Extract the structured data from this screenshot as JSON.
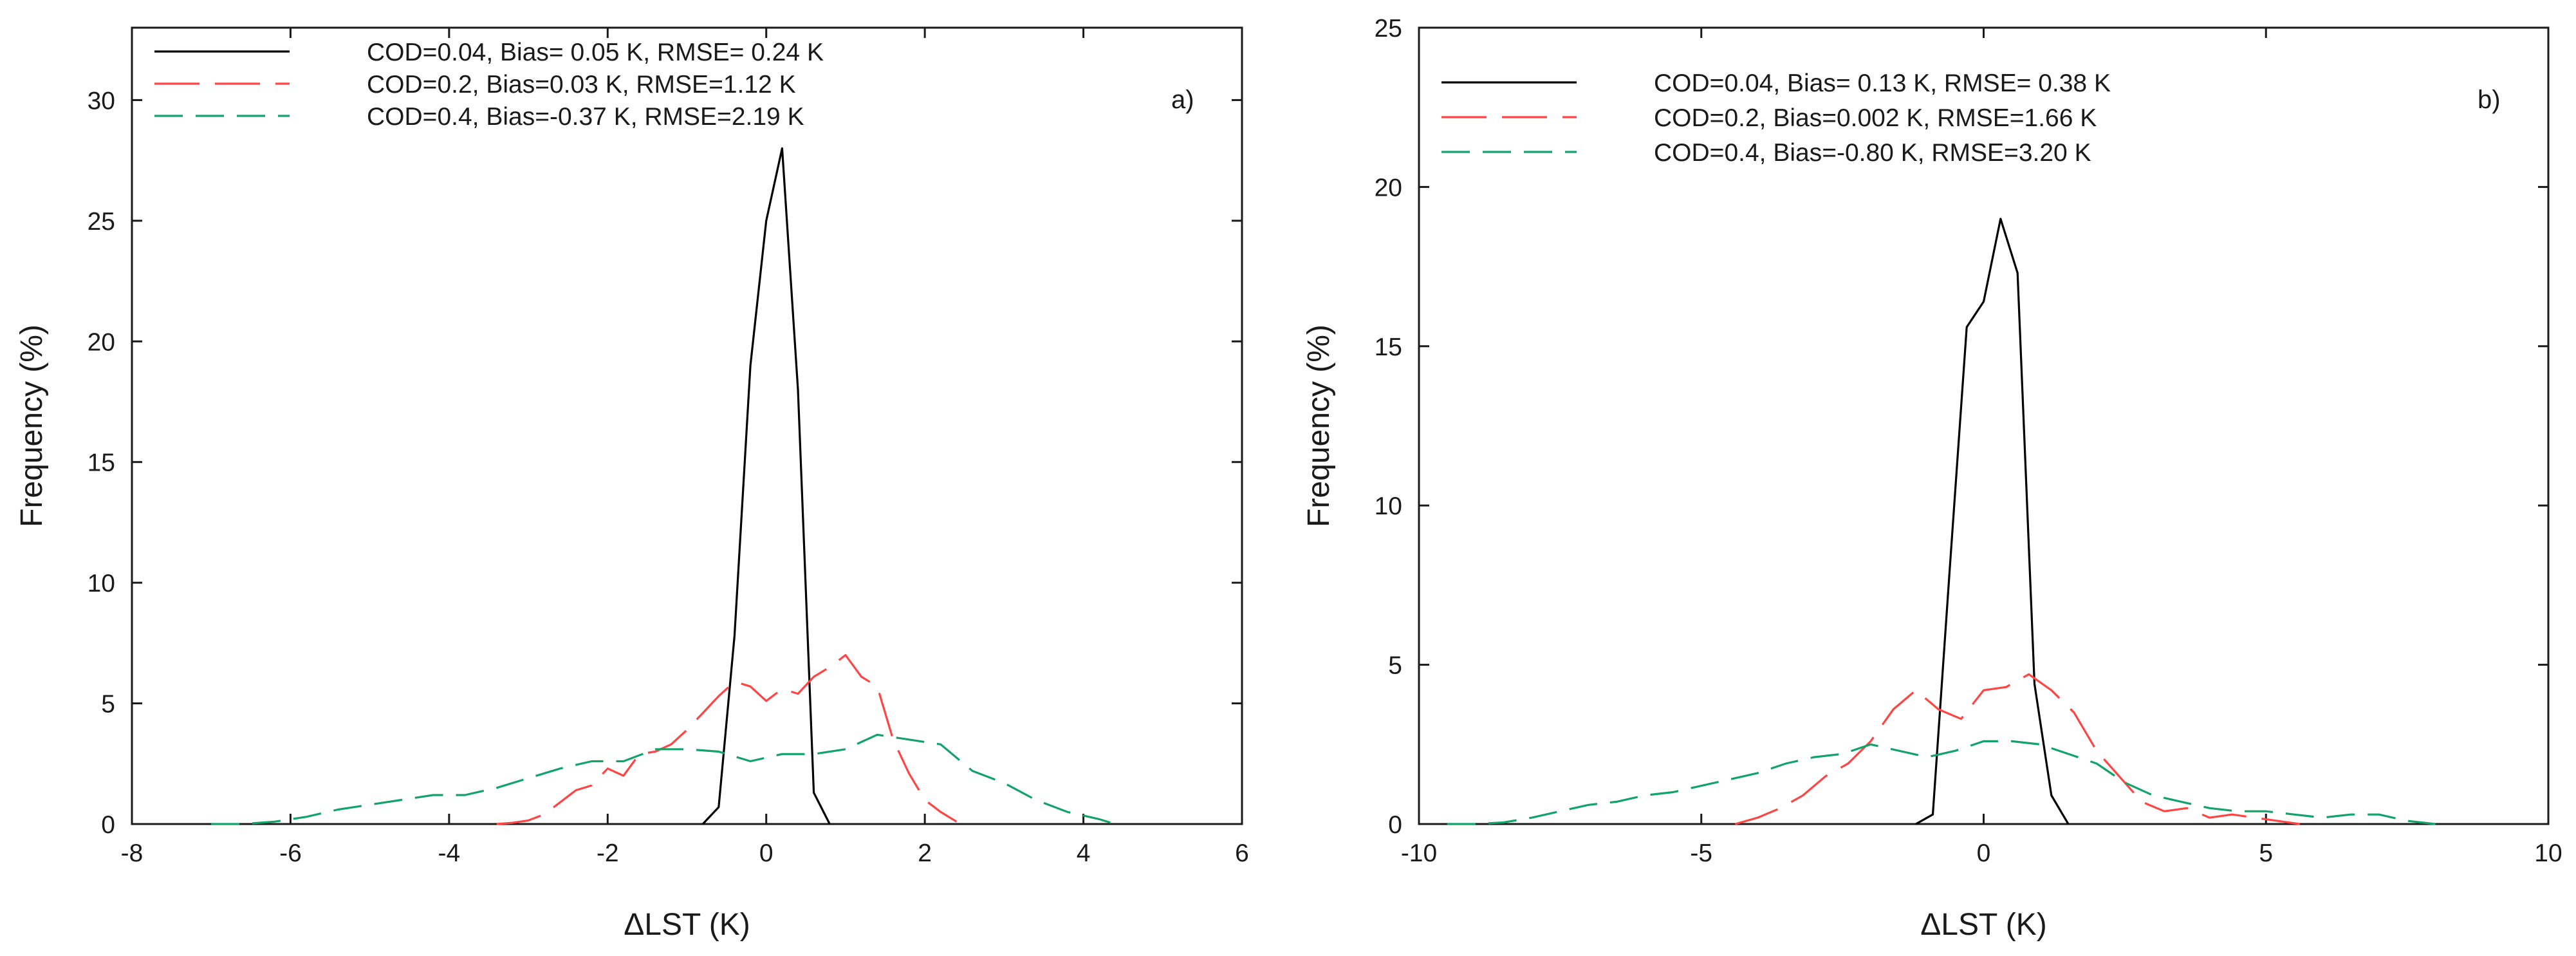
{
  "chart_data": [
    {
      "type": "line",
      "panel_label": "a)",
      "xlabel": "ΔLST (K)",
      "ylabel": "Frequency (%)",
      "xlim": [
        -8,
        6
      ],
      "ylim": [
        0,
        33
      ],
      "xticks": [
        -8,
        -6,
        -4,
        -2,
        0,
        2,
        4,
        6
      ],
      "yticks": [
        0,
        5,
        10,
        15,
        20,
        25,
        30
      ],
      "legend_position": "top-left",
      "series": [
        {
          "name": "COD=0.04, Bias= 0.05 K, RMSE= 0.24 K",
          "color": "#000000",
          "dash": "solid",
          "x": [
            -0.8,
            -0.6,
            -0.4,
            -0.2,
            0.0,
            0.2,
            0.4,
            0.6,
            0.8
          ],
          "y": [
            0,
            0.7,
            7.8,
            19,
            25,
            28,
            18,
            1.3,
            0
          ]
        },
        {
          "name": "COD=0.2, Bias=0.03 K, RMSE=1.12 K",
          "color": "#ff4444",
          "dash": "long",
          "x": [
            -3.4,
            -3.2,
            -3.0,
            -2.8,
            -2.6,
            -2.4,
            -2.2,
            -2.0,
            -1.8,
            -1.6,
            -1.4,
            -1.2,
            -1.0,
            -0.8,
            -0.6,
            -0.4,
            -0.2,
            0.0,
            0.2,
            0.4,
            0.6,
            0.8,
            1.0,
            1.2,
            1.4,
            1.6,
            1.8,
            2.0,
            2.2,
            2.4
          ],
          "y": [
            0,
            0.05,
            0.15,
            0.4,
            0.9,
            1.4,
            1.6,
            2.3,
            2.0,
            2.9,
            3.0,
            3.3,
            3.9,
            4.6,
            5.3,
            5.9,
            5.7,
            5.1,
            5.6,
            5.4,
            6.1,
            6.5,
            7.0,
            6.1,
            5.7,
            3.5,
            2.1,
            1.0,
            0.5,
            0.1
          ]
        },
        {
          "name": "COD=0.4, Bias=-0.37 K, RMSE=2.19 K",
          "color": "#12a36b",
          "dash": "medium",
          "x": [
            -7.0,
            -6.6,
            -6.2,
            -5.8,
            -5.4,
            -5.0,
            -4.6,
            -4.2,
            -3.8,
            -3.4,
            -3.0,
            -2.6,
            -2.2,
            -1.8,
            -1.4,
            -1.0,
            -0.6,
            -0.2,
            0.2,
            0.6,
            1.0,
            1.4,
            1.8,
            2.2,
            2.6,
            3.0,
            3.4,
            3.8,
            4.2,
            4.4
          ],
          "y": [
            0,
            0,
            0.1,
            0.3,
            0.6,
            0.8,
            1.0,
            1.2,
            1.2,
            1.5,
            1.9,
            2.3,
            2.6,
            2.6,
            3.1,
            3.1,
            3.0,
            2.6,
            2.9,
            2.9,
            3.1,
            3.7,
            3.5,
            3.3,
            2.2,
            1.7,
            1.0,
            0.5,
            0.2,
            0
          ]
        }
      ]
    },
    {
      "type": "line",
      "panel_label": "b)",
      "xlabel": "ΔLST (K)",
      "ylabel": "Frequency (%)",
      "xlim": [
        -10,
        10
      ],
      "ylim": [
        0,
        25
      ],
      "xticks": [
        -10,
        -5,
        0,
        5,
        10
      ],
      "yticks": [
        0,
        5,
        10,
        15,
        20,
        25
      ],
      "legend_position": "top-left",
      "series": [
        {
          "name": "COD=0.04, Bias= 0.13 K, RMSE= 0.38 K",
          "color": "#000000",
          "dash": "solid",
          "x": [
            -1.2,
            -0.9,
            -0.6,
            -0.3,
            0.0,
            0.3,
            0.6,
            0.9,
            1.2,
            1.5
          ],
          "y": [
            0,
            0.3,
            8.0,
            15.6,
            16.4,
            19.0,
            17.3,
            4.4,
            0.9,
            0
          ]
        },
        {
          "name": "COD=0.2, Bias=0.002 K, RMSE=1.66 K",
          "color": "#ff4444",
          "dash": "long",
          "x": [
            -4.4,
            -4.0,
            -3.6,
            -3.2,
            -2.8,
            -2.4,
            -2.0,
            -1.6,
            -1.2,
            -0.8,
            -0.4,
            0.0,
            0.4,
            0.8,
            1.2,
            1.6,
            2.0,
            2.4,
            2.8,
            3.2,
            3.6,
            4.0,
            4.4,
            4.8,
            5.2,
            5.6
          ],
          "y": [
            0,
            0.2,
            0.5,
            0.9,
            1.5,
            1.9,
            2.6,
            3.6,
            4.2,
            3.6,
            3.3,
            4.2,
            4.3,
            4.7,
            4.2,
            3.5,
            2.3,
            1.5,
            0.7,
            0.4,
            0.5,
            0.2,
            0.3,
            0.2,
            0.1,
            0
          ]
        },
        {
          "name": "COD=0.4, Bias=-0.80 K, RMSE=3.20 K",
          "color": "#12a36b",
          "dash": "medium",
          "x": [
            -9.5,
            -9.0,
            -8.5,
            -8.0,
            -7.5,
            -7.0,
            -6.5,
            -6.0,
            -5.5,
            -5.0,
            -4.5,
            -4.0,
            -3.5,
            -3.0,
            -2.5,
            -2.0,
            -1.5,
            -1.0,
            -0.5,
            0.0,
            0.5,
            1.0,
            1.5,
            2.0,
            2.5,
            3.0,
            3.5,
            4.0,
            4.5,
            5.0,
            5.5,
            6.0,
            6.5,
            7.0,
            7.5,
            8.0
          ],
          "y": [
            0,
            0,
            0.05,
            0.2,
            0.4,
            0.6,
            0.7,
            0.9,
            1.0,
            1.2,
            1.4,
            1.6,
            1.9,
            2.1,
            2.2,
            2.5,
            2.3,
            2.1,
            2.3,
            2.6,
            2.6,
            2.5,
            2.2,
            1.9,
            1.3,
            0.9,
            0.7,
            0.5,
            0.4,
            0.4,
            0.3,
            0.2,
            0.3,
            0.3,
            0.1,
            0
          ]
        }
      ]
    }
  ]
}
